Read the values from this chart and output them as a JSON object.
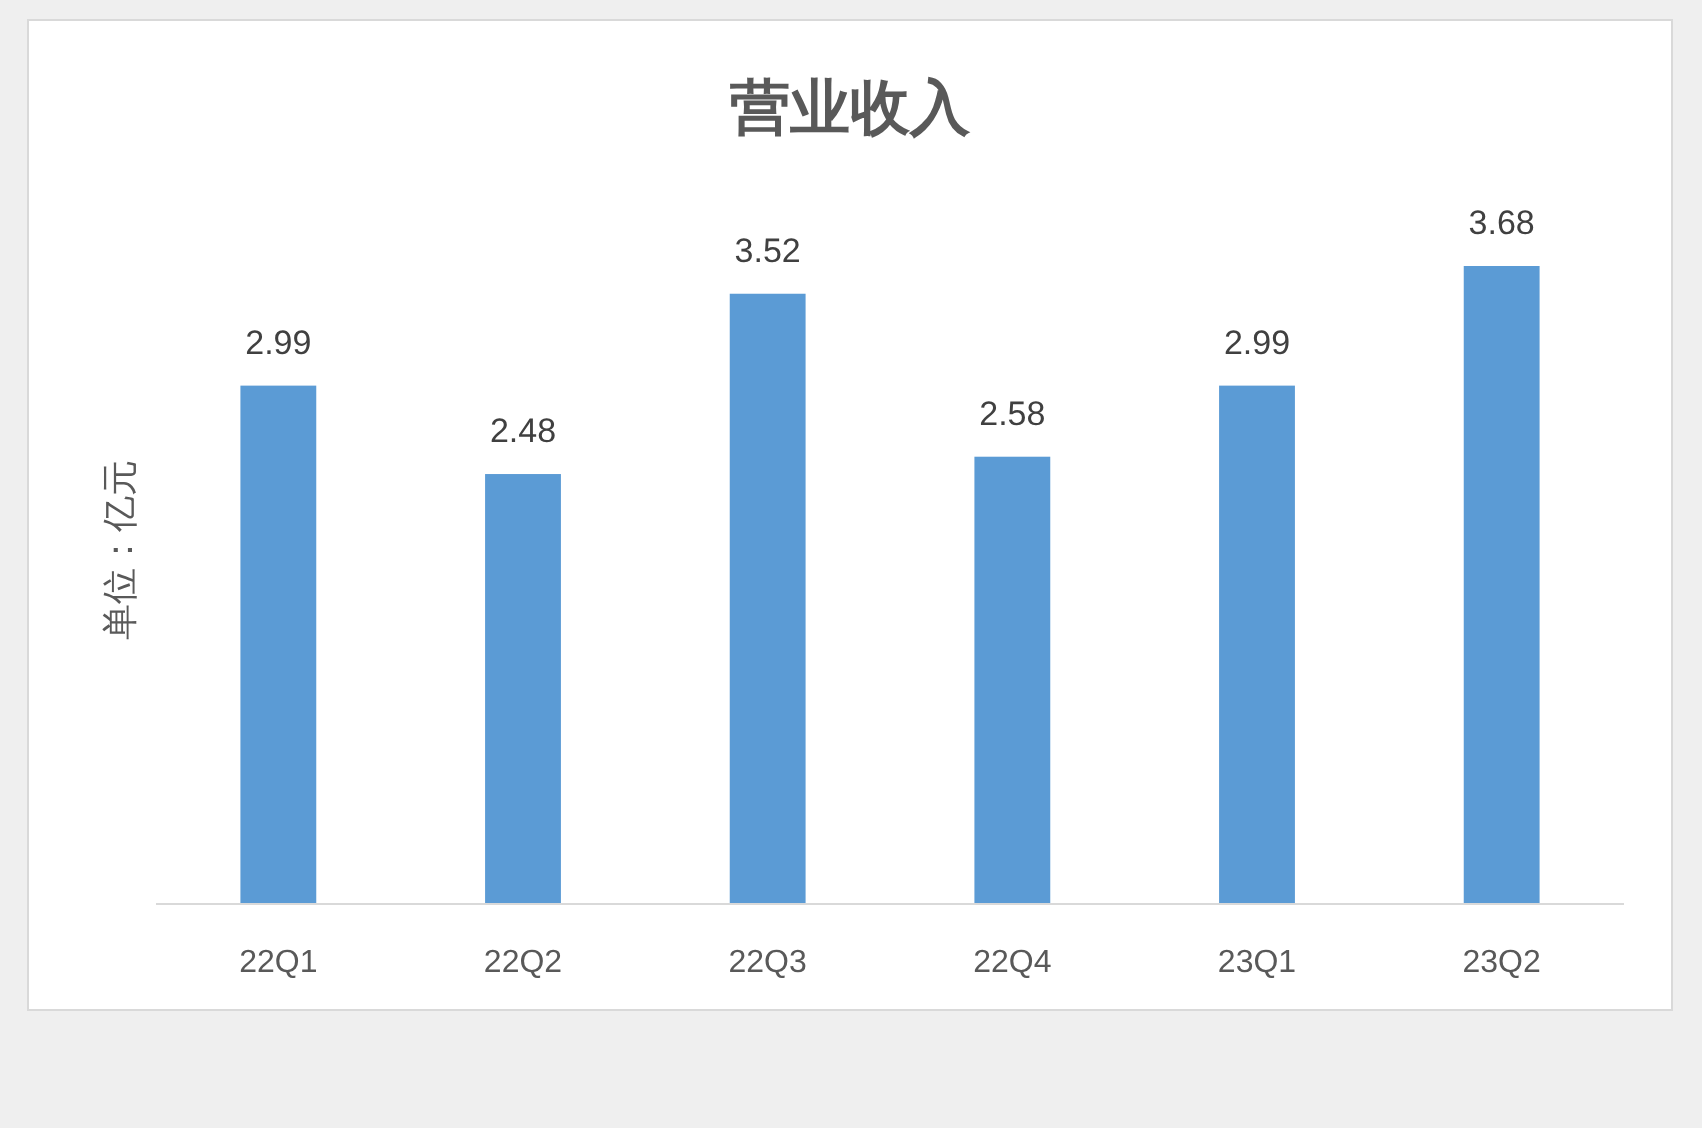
{
  "chart_data": {
    "type": "bar",
    "title": "营业收入",
    "ylabel": "单位：亿元",
    "categories": [
      "22Q1",
      "22Q2",
      "22Q3",
      "22Q4",
      "23Q1",
      "23Q2"
    ],
    "values": [
      2.99,
      2.48,
      3.52,
      2.58,
      2.99,
      3.68
    ],
    "color": "#5b9bd5",
    "data_labels": true
  }
}
